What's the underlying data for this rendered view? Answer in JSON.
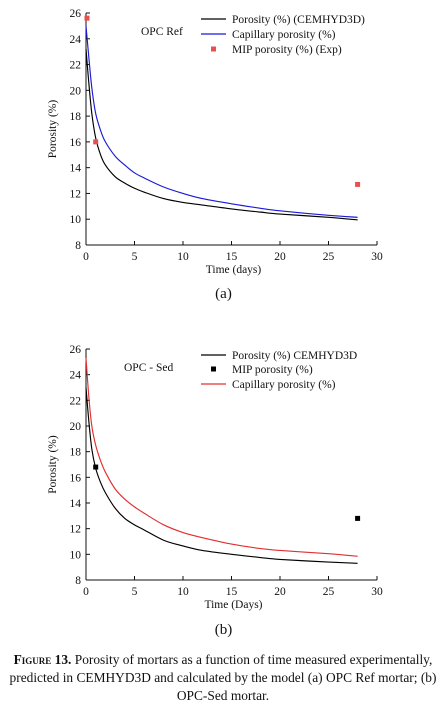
{
  "colors": {
    "axis": "#111111",
    "black": "#000000",
    "blue": "#1a1ad6",
    "red": "#e03030",
    "mip_red": "#e85050"
  },
  "chart_data": [
    {
      "type": "line",
      "panel_label": "(a)",
      "annotation": "OPC Ref",
      "xlabel": "Time (days)",
      "ylabel": "Porosity (%)",
      "xlim": [
        0,
        30
      ],
      "ylim": [
        8,
        26
      ],
      "xticks": [
        0,
        5,
        10,
        15,
        20,
        25,
        30
      ],
      "yticks": [
        8,
        10,
        12,
        14,
        16,
        18,
        20,
        22,
        24,
        26
      ],
      "legend_position": "top-right",
      "series": [
        {
          "name": "Porosity (%) (CEMHYD3D)",
          "kind": "line",
          "color": "#000000",
          "x": [
            0,
            0.3,
            0.6,
            1,
            1.5,
            2,
            3,
            4,
            5,
            6,
            8,
            10,
            12,
            15,
            18,
            20,
            25,
            28
          ],
          "y": [
            23.2,
            20.5,
            18.2,
            16.3,
            15.0,
            14.2,
            13.3,
            12.8,
            12.4,
            12.1,
            11.6,
            11.3,
            11.1,
            10.8,
            10.55,
            10.4,
            10.15,
            9.95
          ]
        },
        {
          "name": "Capillary porosity (%)",
          "kind": "line",
          "color": "#1a1ad6",
          "x": [
            0,
            0.3,
            0.6,
            1,
            1.5,
            2,
            3,
            4,
            5,
            6,
            8,
            10,
            12,
            15,
            18,
            20,
            25,
            28
          ],
          "y": [
            25.0,
            22.5,
            20.2,
            18.2,
            16.9,
            16.0,
            14.9,
            14.2,
            13.6,
            13.2,
            12.5,
            12.0,
            11.6,
            11.2,
            10.85,
            10.65,
            10.3,
            10.15
          ]
        },
        {
          "name": "MIP porosity (%) (Exp)",
          "kind": "marker",
          "color": "#e85050",
          "x": [
            0.1,
            1,
            28
          ],
          "y": [
            25.6,
            16.0,
            12.7
          ]
        }
      ]
    },
    {
      "type": "line",
      "panel_label": "(b)",
      "annotation": "OPC - Sed",
      "xlabel": "Time (Days)",
      "ylabel": "Porosity (%)",
      "xlim": [
        0,
        30
      ],
      "ylim": [
        8,
        26
      ],
      "xticks": [
        0,
        5,
        10,
        15,
        20,
        25,
        30
      ],
      "yticks": [
        8,
        10,
        12,
        14,
        16,
        18,
        20,
        22,
        24,
        26
      ],
      "legend_position": "top-right",
      "series": [
        {
          "name": "Porosity (%) CEMHYD3D",
          "kind": "line",
          "color": "#000000",
          "x": [
            0,
            0.3,
            0.6,
            1,
            1.5,
            2,
            3,
            4,
            5,
            6,
            8,
            10,
            12,
            15,
            18,
            20,
            25,
            28
          ],
          "y": [
            23.0,
            20.3,
            18.2,
            16.7,
            15.6,
            14.8,
            13.6,
            12.8,
            12.3,
            11.9,
            11.1,
            10.65,
            10.3,
            10.0,
            9.75,
            9.6,
            9.4,
            9.3
          ]
        },
        {
          "name": "MIP porosity (%)",
          "kind": "marker",
          "color": "#000000",
          "x": [
            1,
            28
          ],
          "y": [
            16.8,
            12.8
          ]
        },
        {
          "name": "Capillary porosity (%)",
          "kind": "line",
          "color": "#e03030",
          "x": [
            0,
            0.3,
            0.6,
            1,
            1.5,
            2,
            3,
            4,
            5,
            6,
            8,
            10,
            12,
            15,
            18,
            20,
            25,
            28
          ],
          "y": [
            25.3,
            22.2,
            20.0,
            18.5,
            17.3,
            16.4,
            15.1,
            14.3,
            13.7,
            13.2,
            12.3,
            11.7,
            11.3,
            10.8,
            10.45,
            10.3,
            10.05,
            9.85
          ]
        }
      ]
    }
  ],
  "caption": {
    "label": "Figure 13.",
    "text": " Porosity of mortars as a function of time measured experimentally, predicted in CEMHYD3D and calculated by the model (a) OPC Ref mortar; (b) OPC-Sed mortar."
  }
}
